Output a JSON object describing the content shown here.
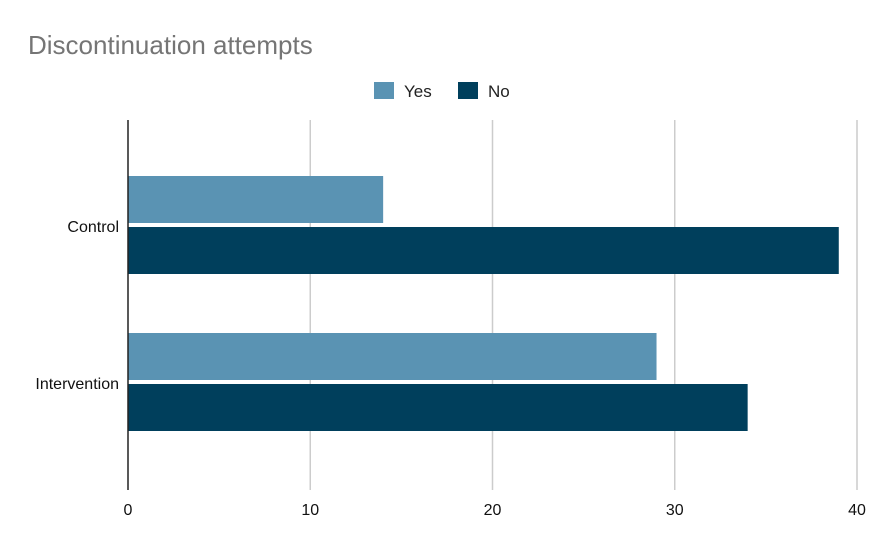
{
  "chart_data": {
    "type": "bar",
    "orientation": "horizontal",
    "title": "Discontinuation attempts",
    "categories": [
      "Control",
      "Intervention"
    ],
    "series": [
      {
        "name": "Yes",
        "values": [
          14,
          29
        ],
        "color": "#5a93b3"
      },
      {
        "name": "No",
        "values": [
          39,
          34
        ],
        "color": "#003f5c"
      }
    ],
    "xlim": [
      0,
      40
    ],
    "x_ticks": [
      "0",
      "10",
      "20",
      "30",
      "40"
    ],
    "grid": true,
    "legend_position": "top-center"
  }
}
